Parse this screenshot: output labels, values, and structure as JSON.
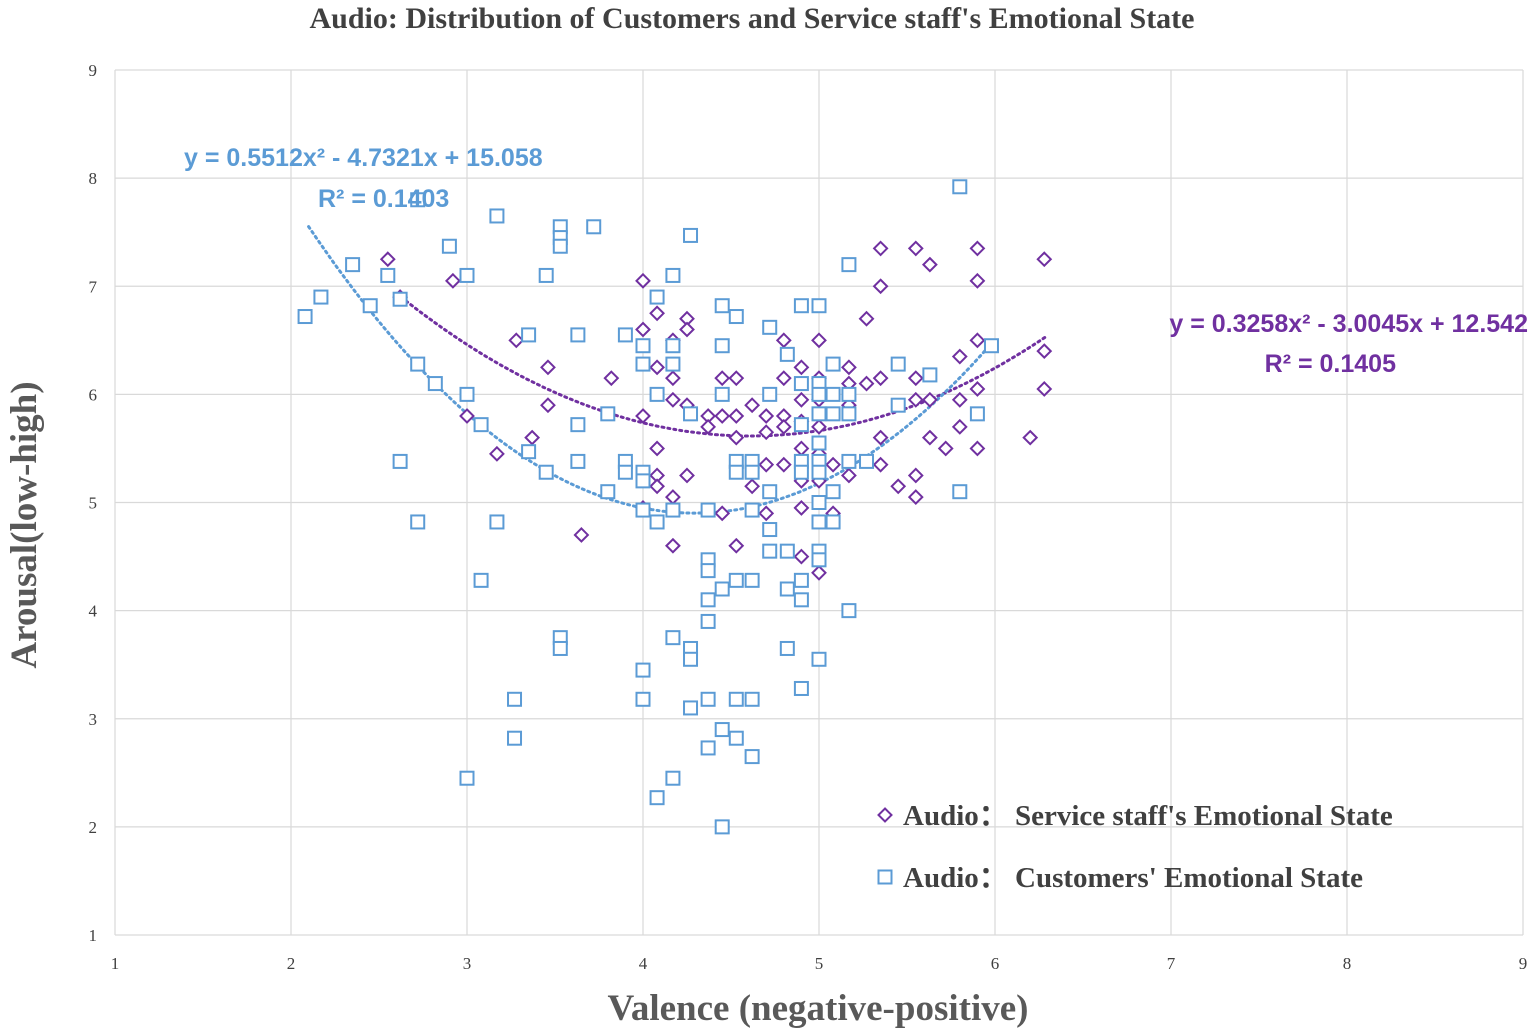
{
  "chart_data": {
    "type": "scatter",
    "title": "Audio: Distribution of Customers and Service staff's Emotional State",
    "xlabel": "Valence (negative-positive)",
    "ylabel": "Arousal(low-high)",
    "xlim": [
      1,
      9
    ],
    "ylim": [
      1,
      9
    ],
    "xticks": [
      "1",
      "2",
      "3",
      "4",
      "5",
      "6",
      "7",
      "8",
      "9"
    ],
    "yticks": [
      "1",
      "2",
      "3",
      "4",
      "5",
      "6",
      "7",
      "8",
      "9"
    ],
    "grid": true,
    "legend_position": "bottom-right",
    "colors": {
      "staff": "#7030a0",
      "customers": "#5b9bd5",
      "grid": "#d9d9d9"
    },
    "series": [
      {
        "key": "staff",
        "name": "Audio： Service staff's Emotional State",
        "marker": "diamond",
        "trendline": {
          "type": "polynomial",
          "coefficients": [
            0.3258,
            -3.0045,
            12.542
          ],
          "x_range": [
            2.6,
            6.3
          ],
          "equation": "y = 0.3258x² - 3.0045x + 12.542",
          "r2": "R² = 0.1405"
        },
        "points": [
          [
            2.55,
            7.25
          ],
          [
            2.62,
            6.9
          ],
          [
            2.92,
            7.05
          ],
          [
            3.0,
            5.8
          ],
          [
            3.17,
            5.45
          ],
          [
            3.28,
            6.5
          ],
          [
            3.37,
            5.6
          ],
          [
            3.46,
            5.9
          ],
          [
            3.46,
            6.25
          ],
          [
            3.65,
            4.7
          ],
          [
            3.82,
            6.15
          ],
          [
            4.0,
            7.05
          ],
          [
            4.0,
            6.6
          ],
          [
            4.0,
            5.8
          ],
          [
            4.0,
            4.95
          ],
          [
            4.08,
            6.75
          ],
          [
            4.08,
            6.25
          ],
          [
            4.08,
            5.5
          ],
          [
            4.08,
            5.25
          ],
          [
            4.08,
            5.15
          ],
          [
            4.17,
            6.5
          ],
          [
            4.17,
            6.15
          ],
          [
            4.17,
            5.95
          ],
          [
            4.17,
            5.05
          ],
          [
            4.17,
            4.6
          ],
          [
            4.25,
            6.7
          ],
          [
            4.25,
            6.6
          ],
          [
            4.25,
            5.9
          ],
          [
            4.25,
            5.25
          ],
          [
            4.37,
            5.8
          ],
          [
            4.37,
            5.7
          ],
          [
            4.45,
            6.15
          ],
          [
            4.45,
            5.8
          ],
          [
            4.45,
            4.9
          ],
          [
            4.53,
            6.15
          ],
          [
            4.53,
            5.8
          ],
          [
            4.53,
            5.6
          ],
          [
            4.53,
            4.6
          ],
          [
            4.62,
            5.9
          ],
          [
            4.62,
            5.15
          ],
          [
            4.7,
            5.8
          ],
          [
            4.7,
            5.65
          ],
          [
            4.7,
            5.35
          ],
          [
            4.7,
            4.9
          ],
          [
            4.8,
            6.5
          ],
          [
            4.8,
            6.15
          ],
          [
            4.8,
            5.8
          ],
          [
            4.8,
            5.7
          ],
          [
            4.8,
            5.35
          ],
          [
            4.9,
            6.25
          ],
          [
            4.9,
            5.95
          ],
          [
            4.9,
            5.75
          ],
          [
            4.9,
            5.5
          ],
          [
            4.9,
            5.2
          ],
          [
            4.9,
            4.95
          ],
          [
            4.9,
            4.5
          ],
          [
            5.0,
            6.5
          ],
          [
            5.0,
            6.15
          ],
          [
            5.0,
            5.95
          ],
          [
            5.0,
            5.7
          ],
          [
            5.0,
            5.45
          ],
          [
            5.0,
            5.2
          ],
          [
            5.0,
            4.35
          ],
          [
            5.08,
            5.35
          ],
          [
            5.08,
            4.9
          ],
          [
            5.17,
            6.25
          ],
          [
            5.17,
            6.1
          ],
          [
            5.17,
            5.9
          ],
          [
            5.17,
            5.25
          ],
          [
            5.27,
            6.7
          ],
          [
            5.27,
            6.1
          ],
          [
            5.35,
            7.35
          ],
          [
            5.35,
            7.0
          ],
          [
            5.35,
            6.15
          ],
          [
            5.35,
            5.6
          ],
          [
            5.35,
            5.35
          ],
          [
            5.45,
            5.15
          ],
          [
            5.55,
            7.35
          ],
          [
            5.55,
            6.15
          ],
          [
            5.55,
            5.95
          ],
          [
            5.55,
            5.25
          ],
          [
            5.55,
            5.05
          ],
          [
            5.63,
            7.2
          ],
          [
            5.63,
            5.95
          ],
          [
            5.63,
            5.6
          ],
          [
            5.72,
            5.5
          ],
          [
            5.8,
            6.35
          ],
          [
            5.8,
            5.95
          ],
          [
            5.8,
            5.7
          ],
          [
            5.9,
            7.35
          ],
          [
            5.9,
            7.05
          ],
          [
            5.9,
            6.5
          ],
          [
            5.9,
            6.05
          ],
          [
            5.9,
            5.5
          ],
          [
            6.2,
            5.6
          ],
          [
            6.28,
            7.25
          ],
          [
            6.28,
            6.4
          ],
          [
            6.28,
            6.05
          ]
        ]
      },
      {
        "key": "customers",
        "name": "Audio： Customers' Emotional State",
        "marker": "square",
        "trendline": {
          "type": "polynomial",
          "coefficients": [
            0.5512,
            -4.7321,
            15.058
          ],
          "x_range": [
            2.1,
            6.0
          ],
          "equation": "y = 0.5512x² - 4.7321x + 15.058",
          "r2": "R² = 0.1403"
        },
        "points": [
          [
            2.08,
            6.72
          ],
          [
            2.17,
            6.9
          ],
          [
            2.35,
            7.2
          ],
          [
            2.45,
            6.82
          ],
          [
            2.55,
            7.1
          ],
          [
            2.62,
            6.88
          ],
          [
            2.62,
            5.38
          ],
          [
            2.72,
            7.8
          ],
          [
            2.72,
            6.28
          ],
          [
            2.72,
            4.82
          ],
          [
            2.82,
            6.1
          ],
          [
            2.9,
            7.37
          ],
          [
            3.0,
            7.1
          ],
          [
            3.0,
            6.0
          ],
          [
            3.0,
            2.45
          ],
          [
            3.08,
            5.72
          ],
          [
            3.08,
            4.28
          ],
          [
            3.17,
            7.65
          ],
          [
            3.17,
            4.82
          ],
          [
            3.27,
            3.18
          ],
          [
            3.27,
            2.82
          ],
          [
            3.35,
            6.55
          ],
          [
            3.35,
            5.47
          ],
          [
            3.45,
            7.1
          ],
          [
            3.45,
            5.28
          ],
          [
            3.53,
            7.55
          ],
          [
            3.53,
            7.45
          ],
          [
            3.53,
            7.37
          ],
          [
            3.53,
            3.75
          ],
          [
            3.53,
            3.65
          ],
          [
            3.63,
            6.55
          ],
          [
            3.63,
            5.72
          ],
          [
            3.63,
            5.38
          ],
          [
            3.72,
            7.55
          ],
          [
            3.8,
            5.82
          ],
          [
            3.8,
            5.1
          ],
          [
            3.9,
            6.55
          ],
          [
            3.9,
            5.38
          ],
          [
            3.9,
            5.28
          ],
          [
            4.0,
            6.45
          ],
          [
            4.0,
            6.28
          ],
          [
            4.0,
            5.28
          ],
          [
            4.0,
            5.2
          ],
          [
            4.0,
            4.93
          ],
          [
            4.0,
            3.45
          ],
          [
            4.0,
            3.18
          ],
          [
            4.08,
            6.9
          ],
          [
            4.08,
            6.0
          ],
          [
            4.08,
            4.82
          ],
          [
            4.08,
            2.27
          ],
          [
            4.17,
            7.1
          ],
          [
            4.17,
            6.45
          ],
          [
            4.17,
            6.28
          ],
          [
            4.17,
            4.93
          ],
          [
            4.17,
            3.75
          ],
          [
            4.17,
            2.45
          ],
          [
            4.27,
            7.47
          ],
          [
            4.27,
            5.82
          ],
          [
            4.27,
            3.65
          ],
          [
            4.27,
            3.55
          ],
          [
            4.27,
            3.1
          ],
          [
            4.37,
            4.93
          ],
          [
            4.37,
            4.47
          ],
          [
            4.37,
            4.37
          ],
          [
            4.37,
            4.1
          ],
          [
            4.37,
            3.9
          ],
          [
            4.37,
            3.18
          ],
          [
            4.37,
            2.73
          ],
          [
            4.45,
            6.82
          ],
          [
            4.45,
            6.45
          ],
          [
            4.45,
            6.0
          ],
          [
            4.45,
            4.2
          ],
          [
            4.45,
            2.9
          ],
          [
            4.45,
            2.0
          ],
          [
            4.53,
            6.72
          ],
          [
            4.53,
            5.38
          ],
          [
            4.53,
            5.28
          ],
          [
            4.53,
            4.28
          ],
          [
            4.53,
            3.18
          ],
          [
            4.53,
            2.82
          ],
          [
            4.62,
            5.38
          ],
          [
            4.62,
            5.28
          ],
          [
            4.62,
            4.93
          ],
          [
            4.62,
            4.28
          ],
          [
            4.62,
            3.18
          ],
          [
            4.62,
            2.65
          ],
          [
            4.72,
            6.62
          ],
          [
            4.72,
            6.0
          ],
          [
            4.72,
            5.1
          ],
          [
            4.72,
            4.75
          ],
          [
            4.72,
            4.55
          ],
          [
            4.82,
            6.37
          ],
          [
            4.82,
            4.55
          ],
          [
            4.82,
            4.2
          ],
          [
            4.82,
            3.65
          ],
          [
            4.9,
            6.82
          ],
          [
            4.9,
            6.1
          ],
          [
            4.9,
            5.72
          ],
          [
            4.9,
            5.38
          ],
          [
            4.9,
            5.28
          ],
          [
            4.9,
            4.28
          ],
          [
            4.9,
            4.1
          ],
          [
            4.9,
            3.28
          ],
          [
            5.0,
            6.82
          ],
          [
            5.0,
            6.1
          ],
          [
            5.0,
            6.0
          ],
          [
            5.0,
            5.82
          ],
          [
            5.0,
            5.55
          ],
          [
            5.0,
            5.38
          ],
          [
            5.0,
            5.28
          ],
          [
            5.0,
            5.0
          ],
          [
            5.0,
            4.82
          ],
          [
            5.0,
            4.55
          ],
          [
            5.0,
            4.47
          ],
          [
            5.0,
            3.55
          ],
          [
            5.08,
            6.28
          ],
          [
            5.08,
            6.0
          ],
          [
            5.08,
            5.82
          ],
          [
            5.08,
            5.1
          ],
          [
            5.08,
            4.82
          ],
          [
            5.17,
            7.2
          ],
          [
            5.17,
            6.0
          ],
          [
            5.17,
            5.82
          ],
          [
            5.17,
            5.38
          ],
          [
            5.17,
            4.0
          ],
          [
            5.27,
            5.38
          ],
          [
            5.45,
            6.28
          ],
          [
            5.45,
            5.9
          ],
          [
            5.63,
            6.18
          ],
          [
            5.8,
            7.92
          ],
          [
            5.8,
            5.1
          ],
          [
            5.9,
            5.82
          ],
          [
            5.98,
            6.45
          ]
        ]
      }
    ]
  }
}
